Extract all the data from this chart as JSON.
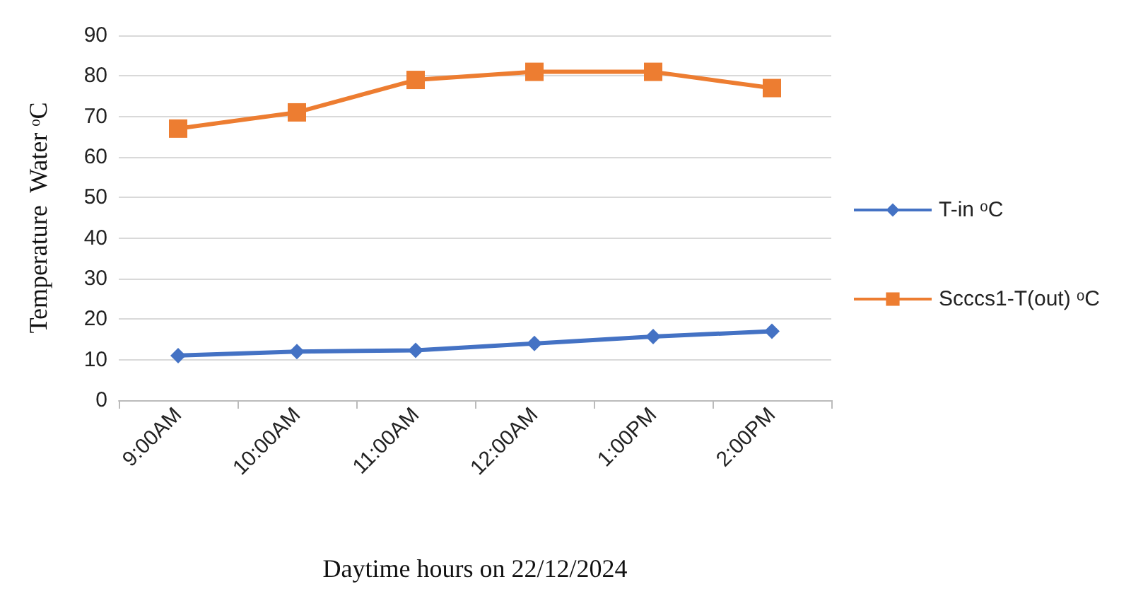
{
  "chart_data": {
    "type": "line",
    "xlabel": "Daytime hours on 22/12/2024",
    "ylabel": "Temperature  Water ᵒC",
    "categories": [
      "9:00AM",
      "10:00AM",
      "11:00AM",
      "12:00AM",
      "1:00PM",
      "2:00PM"
    ],
    "series": [
      {
        "name": "T-in ᵒC",
        "color": "#4472c4",
        "marker": "diamond",
        "values": [
          11,
          12,
          12.3,
          14,
          15.7,
          17
        ]
      },
      {
        "name": "Scccs1-T(out) ᵒC",
        "color": "#ed7d31",
        "marker": "square",
        "values": [
          67,
          71,
          79,
          81,
          81,
          77
        ]
      }
    ],
    "ylim": [
      0,
      90
    ],
    "yticks": [
      0,
      10,
      20,
      30,
      40,
      50,
      60,
      70,
      80,
      90
    ],
    "grid": "y",
    "legend": "right"
  }
}
